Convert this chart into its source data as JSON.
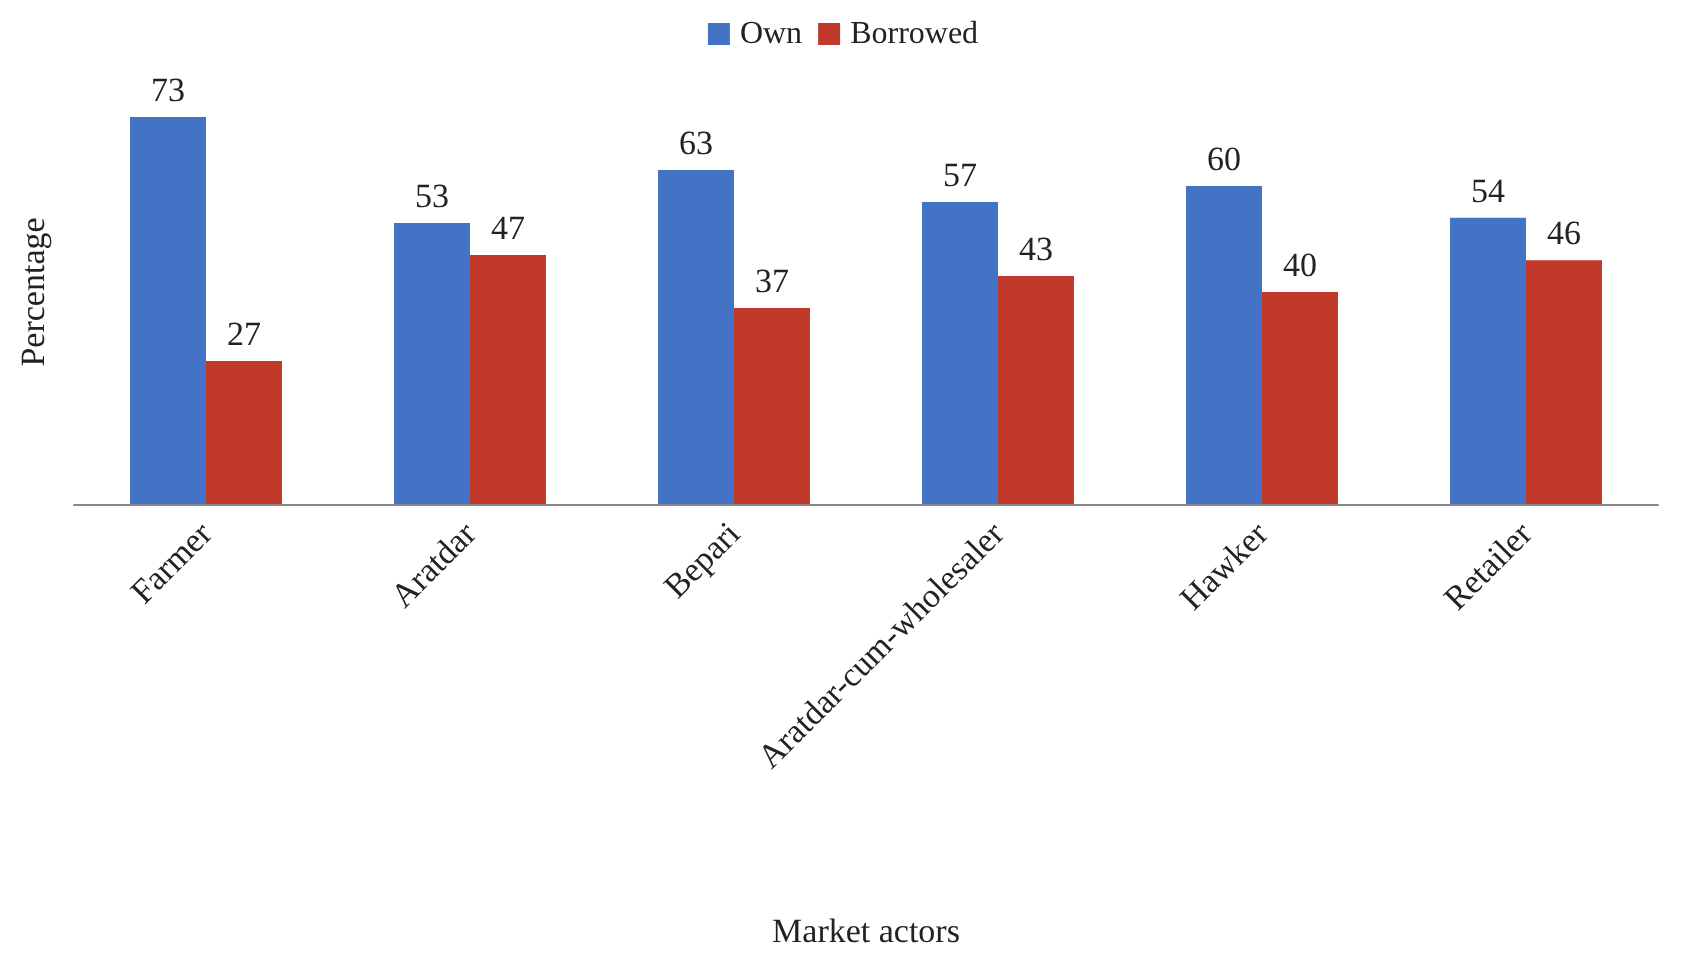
{
  "chart_data": {
    "type": "bar",
    "xlabel": "Market actors",
    "ylabel": "Percentage",
    "categories": [
      "Farmer",
      "Aratdar",
      "Bepari",
      "Aratdar-cum-wholesaler",
      "Hawker",
      "Retailer"
    ],
    "series": [
      {
        "name": "Own",
        "color": "#4472c4",
        "values": [
          73,
          53,
          63,
          57,
          60,
          54
        ]
      },
      {
        "name": "Borrowed",
        "color": "#c0392b",
        "values": [
          27,
          47,
          37,
          43,
          40,
          46
        ]
      }
    ],
    "data_labels": true,
    "legend": "top",
    "grid": false
  }
}
